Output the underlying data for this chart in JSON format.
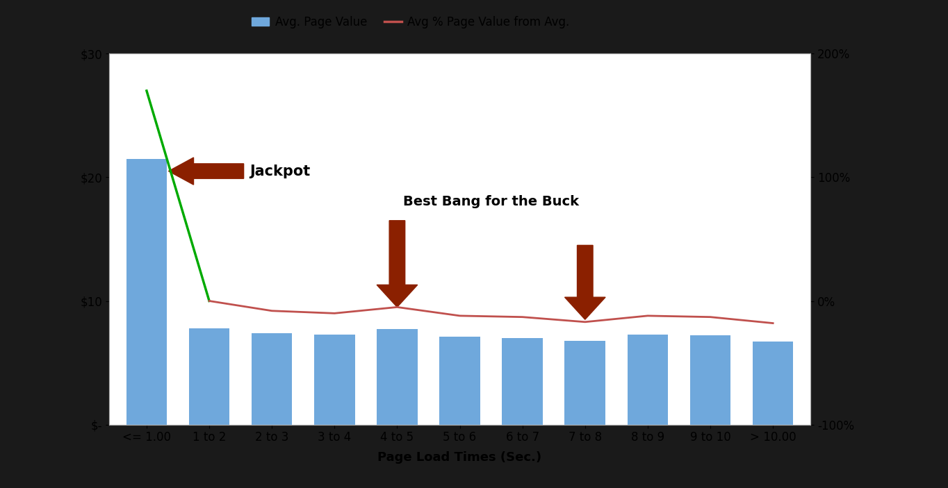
{
  "categories": [
    "<= 1.00",
    "1 to 2",
    "2 to 3",
    "3 to 4",
    "4 to 5",
    "5 to 6",
    "6 to 7",
    "7 to 8",
    "8 to 9",
    "9 to 10",
    "> 10.00"
  ],
  "bar_values": [
    21.5,
    7.8,
    7.4,
    7.3,
    7.7,
    7.1,
    7.0,
    6.8,
    7.3,
    7.2,
    6.7
  ],
  "line_values": [
    170,
    0,
    -8,
    -10,
    -5,
    -12,
    -13,
    -17,
    -12,
    -13,
    -18
  ],
  "bar_color": "#6fa8dc",
  "line_color": "#c0504d",
  "green_line_color": "#00aa00",
  "arrow_color": "#8B2000",
  "ylim_left": [
    0,
    30
  ],
  "ylim_right": [
    -100,
    200
  ],
  "xlabel": "Page Load Times (Sec.)",
  "legend_bar_label": "Avg. Page Value",
  "legend_line_label": "Avg % Page Value from Avg.",
  "background_color": "#ffffff",
  "outer_background": "#1a1a1a",
  "yticks_left": [
    0,
    10,
    20,
    30
  ],
  "ytick_labels_left": [
    "$-",
    "$10",
    "$20",
    "$30"
  ],
  "yticks_right": [
    -100,
    0,
    100,
    200
  ],
  "ytick_labels_right": [
    "-100%",
    "0%",
    "100%",
    "200%"
  ],
  "jackpot_text": "Jackpot",
  "best_bang_text": "Best Bang for the Buck",
  "tick_fontsize": 12
}
